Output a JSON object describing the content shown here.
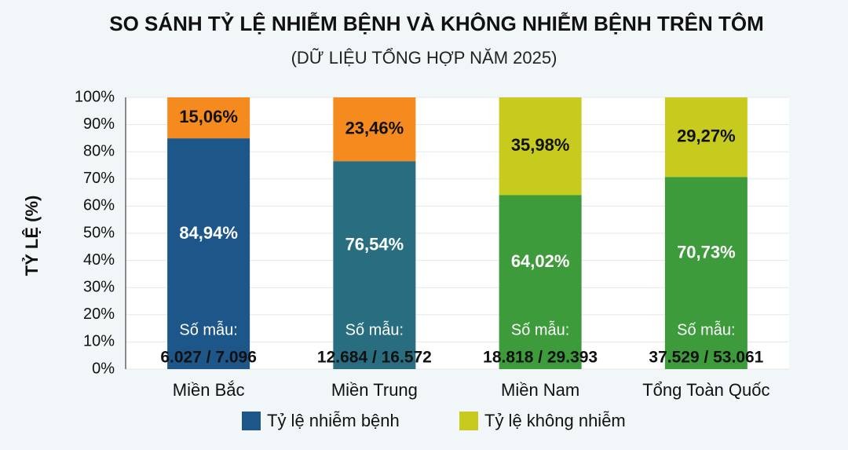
{
  "chart_data": {
    "type": "stacked_bar",
    "title": "SO SÁNH TỶ LỆ NHIỄM BỆNH VÀ KHÔNG NHIỄM BỆNH TRÊN TÔM",
    "subtitle": "(DỮ LIỆU TỔNG HỢP NĂM 2025)",
    "y_label": "TỶ LỆ (%)",
    "categories": [
      "Miền Bắc",
      "Miền Trung",
      "Miền Nam",
      "Tổng Toàn Quốc"
    ],
    "series": [
      {
        "name": "Tỷ lệ nhiễm bệnh",
        "color": "#1d5689",
        "colors": [
          "#1d5689",
          "#286e80",
          "#3d9b3b",
          "#3d9b3b"
        ],
        "values": [
          84.94,
          76.54,
          64.02,
          70.73
        ],
        "value_labels": [
          "84,94%",
          "76,54%",
          "64,02%",
          "70,73%"
        ]
      },
      {
        "name": "Tỷ lệ không nhiễm",
        "color": "#c6cb1d",
        "colors": [
          "#f58a1e",
          "#f58a1e",
          "#c6cb1d",
          "#c6cb1d"
        ],
        "values": [
          15.06,
          23.46,
          35.98,
          29.27
        ],
        "value_labels": [
          "15,06%",
          "23,46%",
          "35,98%",
          "29,27%"
        ]
      }
    ],
    "sample_label": "Số mẫu:",
    "sample_counts": [
      "6.027 / 7.096",
      "12.684 / 16.572",
      "18.818 / 29.393",
      "37.529 / 53.061"
    ],
    "ylim": [
      0,
      100
    ],
    "yticks": [
      {
        "value": 0,
        "label": "0%"
      },
      {
        "value": 10,
        "label": "10%"
      },
      {
        "value": 20,
        "label": "20%"
      },
      {
        "value": 30,
        "label": "30%"
      },
      {
        "value": 40,
        "label": "40%"
      },
      {
        "value": 50,
        "label": "50%"
      },
      {
        "value": 60,
        "label": "60%"
      },
      {
        "value": 70,
        "label": "70%"
      },
      {
        "value": 80,
        "label": "80%"
      },
      {
        "value": 90,
        "label": "90%"
      },
      {
        "value": 100,
        "label": "100%"
      }
    ],
    "grid": true
  }
}
